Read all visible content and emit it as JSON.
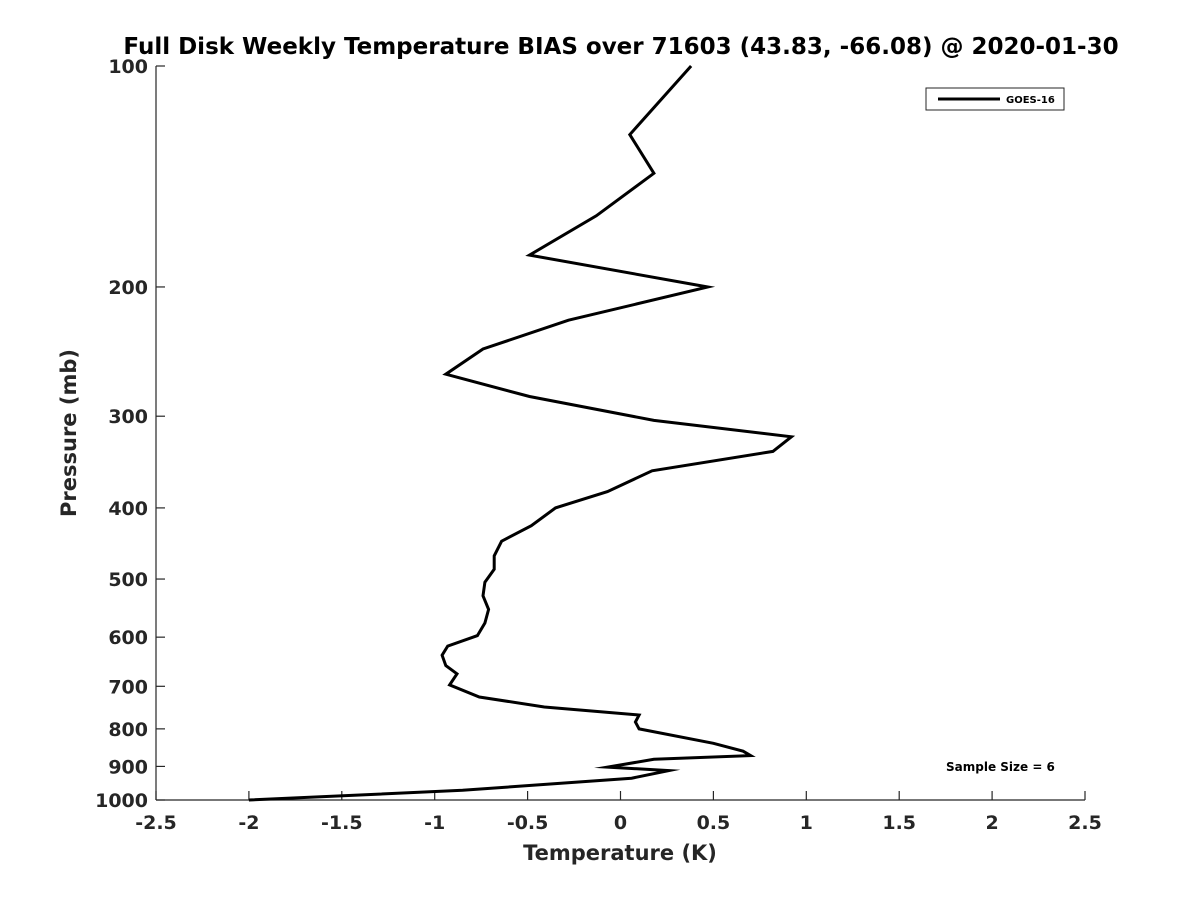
{
  "chart_data": {
    "type": "line",
    "title": "Full Disk Weekly Temperature BIAS over 71603 (43.83, -66.08) @ 2020-01-30",
    "xlabel": "Temperature (K)",
    "ylabel": "Pressure (mb)",
    "xlim": [
      -2.5,
      2.5
    ],
    "ylim": [
      100,
      1000
    ],
    "yscale": "log",
    "y_reversed": true,
    "grid": false,
    "x_ticks": [
      -2.5,
      -2,
      -1.5,
      -1,
      -0.5,
      0,
      0.5,
      1,
      1.5,
      2,
      2.5
    ],
    "x_tick_labels": [
      "-2.5",
      "-2",
      "-1.5",
      "-1",
      "-0.5",
      "0",
      "0.5",
      "1",
      "1.5",
      "2",
      "2.5"
    ],
    "y_ticks": [
      100,
      200,
      300,
      400,
      500,
      600,
      700,
      800,
      900,
      1000
    ],
    "y_tick_labels": [
      "100",
      "200",
      "300",
      "400",
      "500",
      "600",
      "700",
      "800",
      "900",
      "1000"
    ],
    "legend": {
      "position": "top-right",
      "entries": [
        "GOES-16"
      ]
    },
    "annotation": "Sample Size = 6",
    "line_color": "#000000",
    "series": [
      {
        "name": "GOES-16",
        "x": [
          0.38,
          0.05,
          0.18,
          -0.13,
          -0.49,
          0.47,
          -0.28,
          -0.74,
          -0.94,
          -0.49,
          0.18,
          0.92,
          0.82,
          0.17,
          -0.07,
          -0.35,
          -0.48,
          -0.64,
          -0.68,
          -0.68,
          -0.73,
          -0.74,
          -0.71,
          -0.73,
          -0.77,
          -0.93,
          -0.96,
          -0.94,
          -0.88,
          -0.92,
          -0.76,
          -0.41,
          0.1,
          0.08,
          0.1,
          0.5,
          0.66,
          0.7,
          0.18,
          -0.07,
          0.26,
          0.06,
          -0.85,
          -2.0
        ],
        "y": [
          100,
          124,
          140,
          160,
          181,
          200,
          222,
          243,
          263,
          282,
          304,
          320,
          335,
          356,
          380,
          400,
          423,
          444,
          465,
          485,
          505,
          527,
          550,
          574,
          597,
          617,
          635,
          656,
          673,
          697,
          724,
          747,
          766,
          783,
          800,
          837,
          858,
          870,
          880,
          902,
          912,
          934,
          970,
          1000
        ]
      }
    ]
  }
}
